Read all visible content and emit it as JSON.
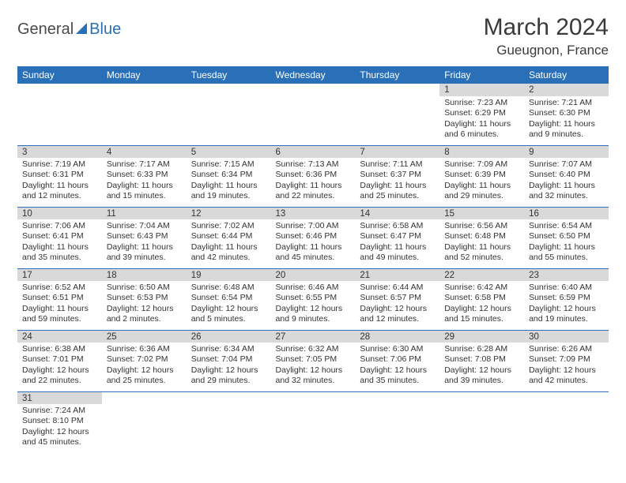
{
  "logo": {
    "text1": "General",
    "text2": "Blue"
  },
  "title": "March 2024",
  "location": "Gueugnon, France",
  "colors": {
    "header_bg": "#2a70b8",
    "header_text": "#ffffff",
    "daynum_bg": "#d9d9d9",
    "text": "#333333",
    "border": "#2a70b8"
  },
  "dayHeaders": [
    "Sunday",
    "Monday",
    "Tuesday",
    "Wednesday",
    "Thursday",
    "Friday",
    "Saturday"
  ],
  "weeks": [
    [
      null,
      null,
      null,
      null,
      null,
      {
        "n": "1",
        "sr": "7:23 AM",
        "ss": "6:29 PM",
        "dl": "11 hours and 6 minutes."
      },
      {
        "n": "2",
        "sr": "7:21 AM",
        "ss": "6:30 PM",
        "dl": "11 hours and 9 minutes."
      }
    ],
    [
      {
        "n": "3",
        "sr": "7:19 AM",
        "ss": "6:31 PM",
        "dl": "11 hours and 12 minutes."
      },
      {
        "n": "4",
        "sr": "7:17 AM",
        "ss": "6:33 PM",
        "dl": "11 hours and 15 minutes."
      },
      {
        "n": "5",
        "sr": "7:15 AM",
        "ss": "6:34 PM",
        "dl": "11 hours and 19 minutes."
      },
      {
        "n": "6",
        "sr": "7:13 AM",
        "ss": "6:36 PM",
        "dl": "11 hours and 22 minutes."
      },
      {
        "n": "7",
        "sr": "7:11 AM",
        "ss": "6:37 PM",
        "dl": "11 hours and 25 minutes."
      },
      {
        "n": "8",
        "sr": "7:09 AM",
        "ss": "6:39 PM",
        "dl": "11 hours and 29 minutes."
      },
      {
        "n": "9",
        "sr": "7:07 AM",
        "ss": "6:40 PM",
        "dl": "11 hours and 32 minutes."
      }
    ],
    [
      {
        "n": "10",
        "sr": "7:06 AM",
        "ss": "6:41 PM",
        "dl": "11 hours and 35 minutes."
      },
      {
        "n": "11",
        "sr": "7:04 AM",
        "ss": "6:43 PM",
        "dl": "11 hours and 39 minutes."
      },
      {
        "n": "12",
        "sr": "7:02 AM",
        "ss": "6:44 PM",
        "dl": "11 hours and 42 minutes."
      },
      {
        "n": "13",
        "sr": "7:00 AM",
        "ss": "6:46 PM",
        "dl": "11 hours and 45 minutes."
      },
      {
        "n": "14",
        "sr": "6:58 AM",
        "ss": "6:47 PM",
        "dl": "11 hours and 49 minutes."
      },
      {
        "n": "15",
        "sr": "6:56 AM",
        "ss": "6:48 PM",
        "dl": "11 hours and 52 minutes."
      },
      {
        "n": "16",
        "sr": "6:54 AM",
        "ss": "6:50 PM",
        "dl": "11 hours and 55 minutes."
      }
    ],
    [
      {
        "n": "17",
        "sr": "6:52 AM",
        "ss": "6:51 PM",
        "dl": "11 hours and 59 minutes."
      },
      {
        "n": "18",
        "sr": "6:50 AM",
        "ss": "6:53 PM",
        "dl": "12 hours and 2 minutes."
      },
      {
        "n": "19",
        "sr": "6:48 AM",
        "ss": "6:54 PM",
        "dl": "12 hours and 5 minutes."
      },
      {
        "n": "20",
        "sr": "6:46 AM",
        "ss": "6:55 PM",
        "dl": "12 hours and 9 minutes."
      },
      {
        "n": "21",
        "sr": "6:44 AM",
        "ss": "6:57 PM",
        "dl": "12 hours and 12 minutes."
      },
      {
        "n": "22",
        "sr": "6:42 AM",
        "ss": "6:58 PM",
        "dl": "12 hours and 15 minutes."
      },
      {
        "n": "23",
        "sr": "6:40 AM",
        "ss": "6:59 PM",
        "dl": "12 hours and 19 minutes."
      }
    ],
    [
      {
        "n": "24",
        "sr": "6:38 AM",
        "ss": "7:01 PM",
        "dl": "12 hours and 22 minutes."
      },
      {
        "n": "25",
        "sr": "6:36 AM",
        "ss": "7:02 PM",
        "dl": "12 hours and 25 minutes."
      },
      {
        "n": "26",
        "sr": "6:34 AM",
        "ss": "7:04 PM",
        "dl": "12 hours and 29 minutes."
      },
      {
        "n": "27",
        "sr": "6:32 AM",
        "ss": "7:05 PM",
        "dl": "12 hours and 32 minutes."
      },
      {
        "n": "28",
        "sr": "6:30 AM",
        "ss": "7:06 PM",
        "dl": "12 hours and 35 minutes."
      },
      {
        "n": "29",
        "sr": "6:28 AM",
        "ss": "7:08 PM",
        "dl": "12 hours and 39 minutes."
      },
      {
        "n": "30",
        "sr": "6:26 AM",
        "ss": "7:09 PM",
        "dl": "12 hours and 42 minutes."
      }
    ],
    [
      {
        "n": "31",
        "sr": "7:24 AM",
        "ss": "8:10 PM",
        "dl": "12 hours and 45 minutes."
      },
      null,
      null,
      null,
      null,
      null,
      null
    ]
  ],
  "labels": {
    "sunrise": "Sunrise:",
    "sunset": "Sunset:",
    "daylight": "Daylight:"
  }
}
